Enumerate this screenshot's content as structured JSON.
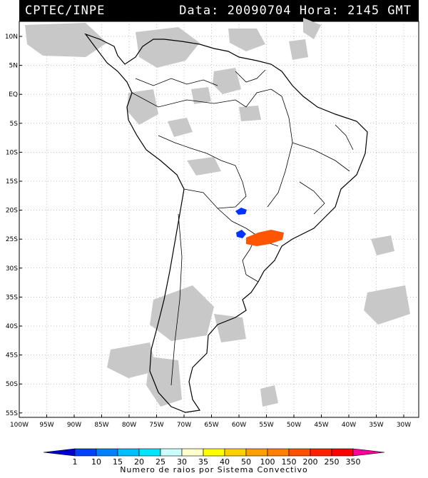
{
  "header": {
    "source": "CPTEC/INPE",
    "stamp": "Data: 20090704 Hora: 2145 GMT"
  },
  "axes": {
    "lat_labels": [
      "10N",
      "5N",
      "EQ",
      "5S",
      "10S",
      "15S",
      "20S",
      "25S",
      "30S",
      "35S",
      "40S",
      "45S",
      "50S",
      "55S"
    ],
    "lon_labels": [
      "100W",
      "95W",
      "90W",
      "85W",
      "80W",
      "75W",
      "70W",
      "65W",
      "60W",
      "55W",
      "50W",
      "45W",
      "40W",
      "35W",
      "30W"
    ]
  },
  "legend": {
    "title": "Numero de raios por Sistema Convectivo",
    "values": [
      "1",
      "10",
      "15",
      "20",
      "25",
      "30",
      "35",
      "40",
      "50",
      "100",
      "150",
      "200",
      "250",
      "350"
    ],
    "colors": [
      "#0000cc",
      "#0040ff",
      "#0080ff",
      "#00bfff",
      "#00e5ff",
      "#ccffff",
      "#ffffcc",
      "#ffff00",
      "#ffd000",
      "#ffa000",
      "#ff8000",
      "#ff5000",
      "#ff2000",
      "#ff0000",
      "#ff0099"
    ]
  },
  "colors": {
    "cloud": "#c8c8c8",
    "lightning_blue": "#0033ff",
    "lightning_orange": "#ff5500"
  }
}
